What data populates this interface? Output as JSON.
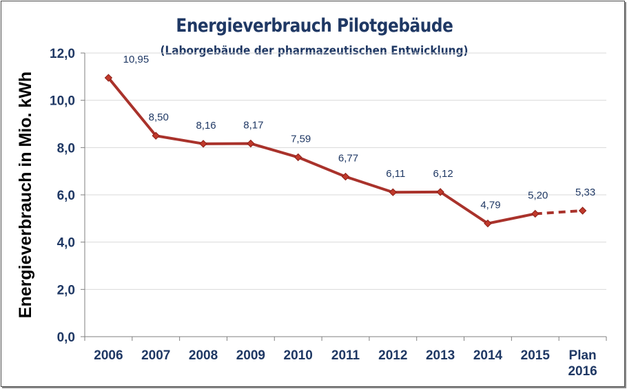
{
  "chart_data": {
    "type": "line",
    "title": "Energieverbrauch Pilotgebäude",
    "subtitle": "(Laborgebäude der pharmazeutischen Entwicklung)",
    "ylabel": "Energieverbrauch  in Mio. kWh",
    "xlabel": "",
    "categories": [
      "2006",
      "2007",
      "2008",
      "2009",
      "2010",
      "2011",
      "2012",
      "2013",
      "2014",
      "2015",
      "Plan 2016"
    ],
    "values": [
      10.95,
      8.5,
      8.16,
      8.17,
      7.59,
      6.77,
      6.11,
      6.12,
      4.79,
      5.2,
      5.33
    ],
    "value_labels": [
      "10,95",
      "8,50",
      "8,16",
      "8,17",
      "7,59",
      "6,77",
      "6,11",
      "6,12",
      "4,79",
      "5,20",
      "5,33"
    ],
    "projected_from_index": 9,
    "ylim": [
      0,
      12
    ],
    "yticks": [
      "0,0",
      "2,0",
      "4,0",
      "6,0",
      "8,0",
      "10,0",
      "12,0"
    ],
    "grid": true,
    "legend": "none",
    "colors": {
      "line": "#a9322b",
      "marker": "#c0392b",
      "text": "#1f3864",
      "grid": "#d9d9d9"
    }
  }
}
